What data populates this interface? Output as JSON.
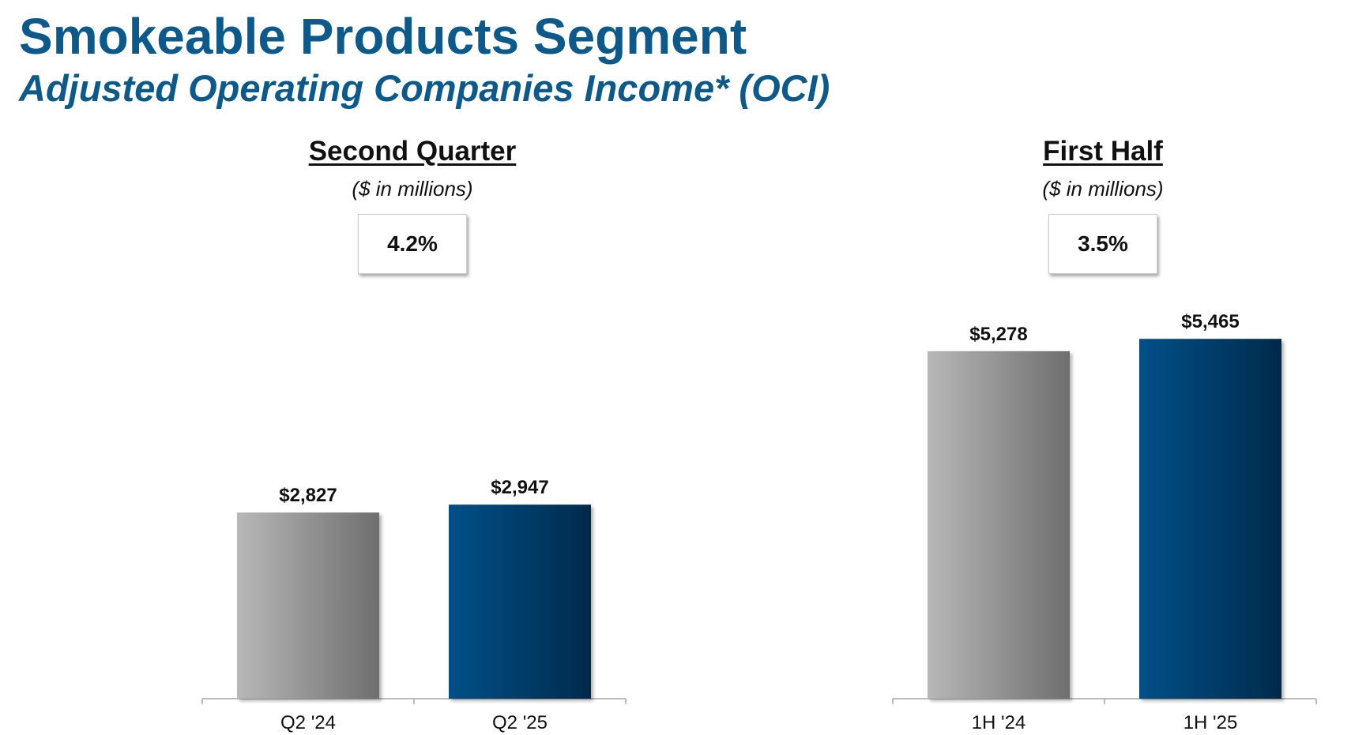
{
  "slide": {
    "title": "Smokeable Products Segment",
    "subtitle": "Adjusted Operating Companies Income* (OCI)"
  },
  "colors": {
    "title": "#0c5a8c",
    "bar_prior": "#9a9a9a",
    "bar_current": "#004b7d"
  },
  "panels": [
    {
      "heading": "Second Quarter",
      "unit": "($ in millions)",
      "growth": "4.2%"
    },
    {
      "heading": "First Half",
      "unit": "($ in millions)",
      "growth": "3.5%"
    }
  ],
  "chart_data": [
    {
      "type": "bar",
      "title": "Second Quarter",
      "ylabel": "",
      "categories": [
        "Q2 '24",
        "Q2 '25"
      ],
      "values": [
        2827,
        2947
      ],
      "value_labels": [
        "$2,827",
        "$2,947"
      ],
      "ylim": [
        0,
        6000
      ],
      "grid": false,
      "legend": "none"
    },
    {
      "type": "bar",
      "title": "First Half",
      "ylabel": "",
      "categories": [
        "1H '24",
        "1H '25"
      ],
      "values": [
        5278,
        5465
      ],
      "value_labels": [
        "$5,278",
        "$5,465"
      ],
      "ylim": [
        0,
        6000
      ],
      "grid": false,
      "legend": "none"
    }
  ]
}
